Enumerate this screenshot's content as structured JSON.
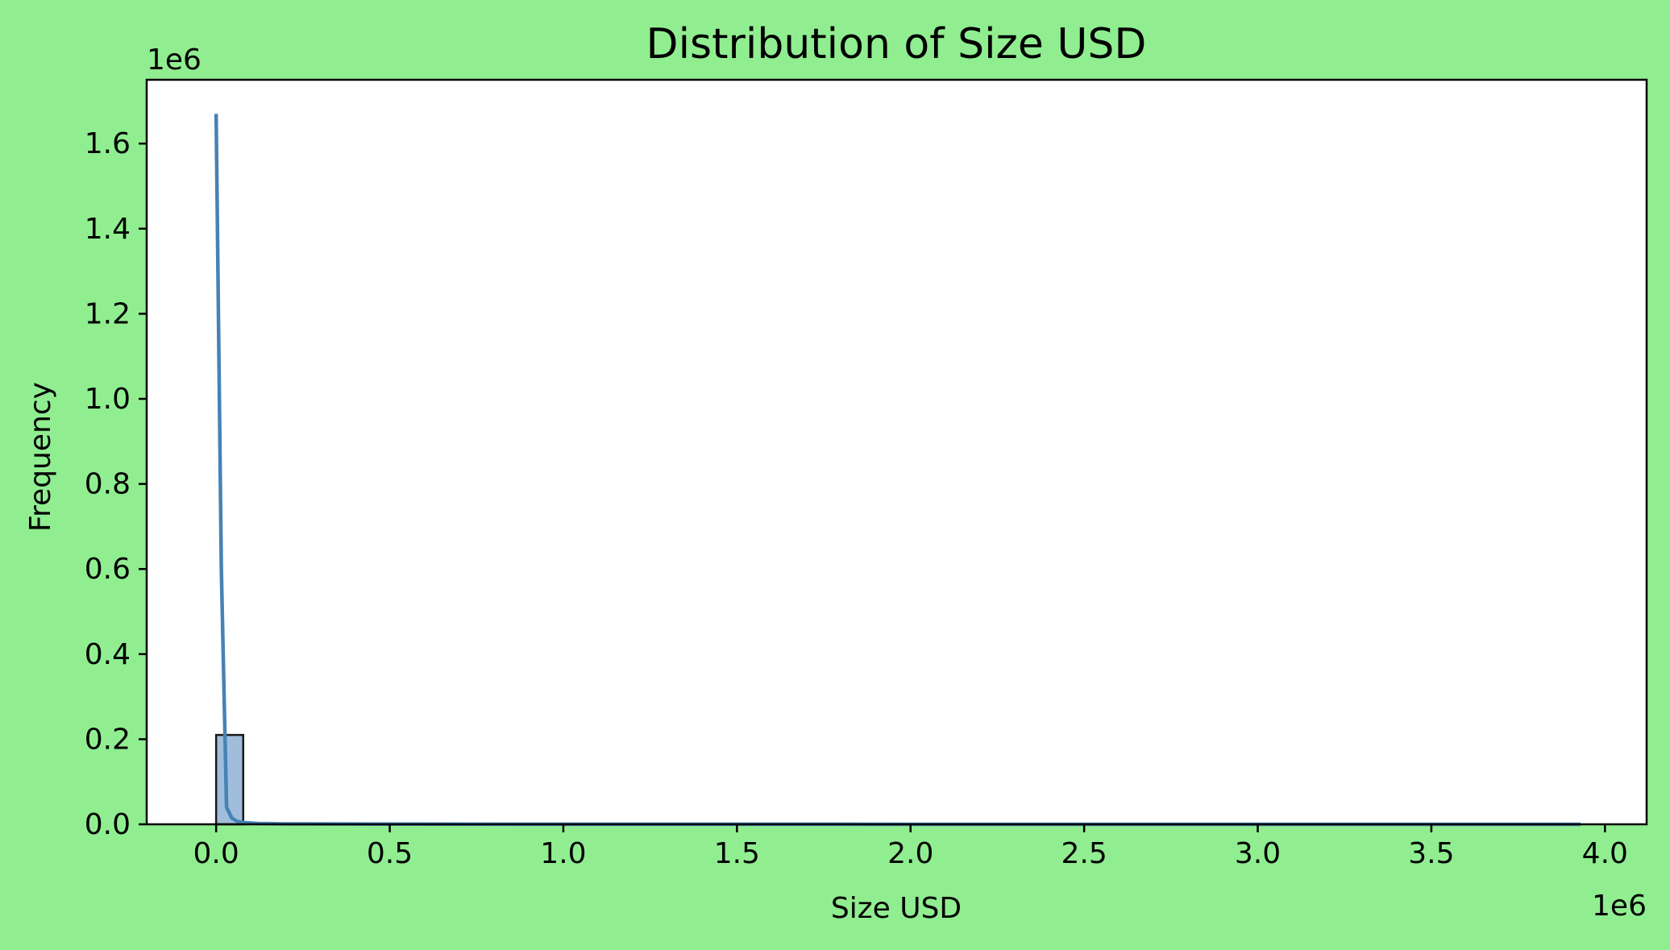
{
  "chart_data": {
    "type": "bar",
    "title": "Distribution of Size USD",
    "xlabel": "Size USD",
    "ylabel": "Frequency",
    "x_offset_label": "1e6",
    "y_offset_label": "1e6",
    "x_scale": 1000000,
    "y_scale": 1000000,
    "xlim": [
      -200000,
      4120000
    ],
    "ylim": [
      0,
      1750000
    ],
    "x_ticks": [
      0,
      500000,
      1000000,
      1500000,
      2000000,
      2500000,
      3000000,
      3500000,
      4000000
    ],
    "x_tick_labels": [
      "0.0",
      "0.5",
      "1.0",
      "1.5",
      "2.0",
      "2.5",
      "3.0",
      "3.5",
      "4.0"
    ],
    "y_ticks": [
      0,
      200000,
      400000,
      600000,
      800000,
      1000000,
      1200000,
      1400000,
      1600000
    ],
    "y_tick_labels": [
      "0.0",
      "0.2",
      "0.4",
      "0.6",
      "0.8",
      "1.0",
      "1.2",
      "1.4",
      "1.6"
    ],
    "histogram": {
      "bin_edges": [
        0,
        78000
      ],
      "counts": [
        210000
      ],
      "note_other_bins": "remaining bins up to ~3.93e6 have near-zero counts"
    },
    "kde_line": {
      "x": [
        0,
        15000,
        30000,
        45000,
        60000,
        80000,
        120000,
        200000,
        500000,
        1000000,
        2000000,
        3000000,
        3930000
      ],
      "y": [
        1670000,
        600000,
        40000,
        15000,
        7000,
        4000,
        2000,
        1000,
        400,
        200,
        100,
        50,
        0
      ]
    },
    "grid": false,
    "legend": "none",
    "colors": {
      "background": "#90EE90",
      "plot_area": "#FFFFFF",
      "bar_fill": "#A0BEDC",
      "bar_edge": "#1A1A1A",
      "kde_line": "#4682B4"
    }
  }
}
